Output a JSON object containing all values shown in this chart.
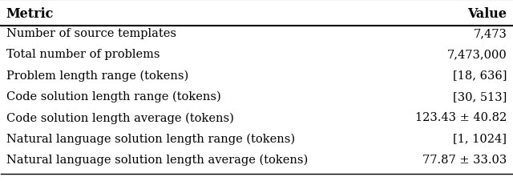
{
  "title": "",
  "col_headers": [
    "Metric",
    "Value"
  ],
  "rows": [
    [
      "Number of source templates",
      "7,473"
    ],
    [
      "Total number of problems",
      "7,473,000"
    ],
    [
      "Problem length range (tokens)",
      "[18, 636]"
    ],
    [
      "Code solution length range (tokens)",
      "[30, 513]"
    ],
    [
      "Code solution length average (tokens)",
      "123.43 ± 40.82"
    ],
    [
      "Natural language solution length range (tokens)",
      "[1, 1024]"
    ],
    [
      "Natural language solution length average (tokens)",
      "77.87 ± 33.03"
    ]
  ],
  "background_color": "#ffffff",
  "header_line_color": "#000000",
  "text_color": "#000000",
  "font_size": 10.5,
  "header_font_size": 11.5
}
